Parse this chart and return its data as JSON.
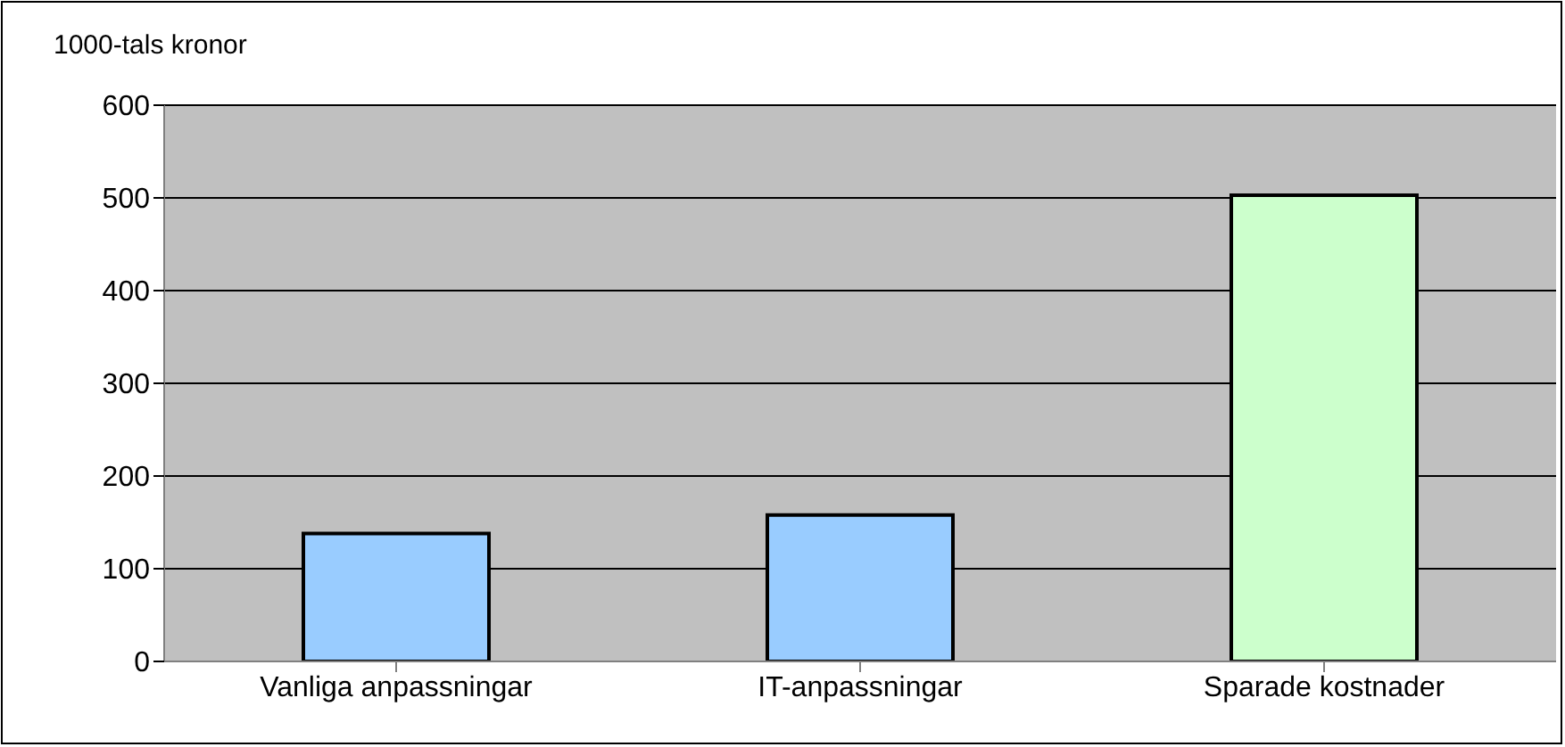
{
  "chart_data": {
    "type": "bar",
    "ylabel": "1000-tals kronor",
    "categories": [
      "Vanliga anpassningar",
      "IT-anpassningar",
      "Sparade kostnader"
    ],
    "values": [
      138,
      158,
      503
    ],
    "colors": [
      "#99ccff",
      "#99ccff",
      "#ccffcc"
    ],
    "ylim": [
      0,
      600
    ],
    "yticks": [
      0,
      100,
      200,
      300,
      400,
      500,
      600
    ],
    "grid": "y"
  }
}
